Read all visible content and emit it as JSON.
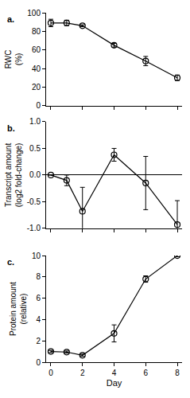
{
  "chart_data": [
    {
      "type": "line",
      "title": "a.",
      "y_label": "RWC\n(%)",
      "x": [
        0,
        1,
        2,
        4,
        6,
        8
      ],
      "values": [
        89,
        89,
        86,
        65,
        48,
        30
      ],
      "error": [
        4,
        3,
        1,
        2,
        5,
        3
      ],
      "color": "#000000",
      "marker": "circle-open",
      "xlim": [
        -0.3,
        8.3
      ],
      "xticks": [
        0,
        2,
        4,
        6,
        8
      ],
      "ylim": [
        0,
        100
      ],
      "yticks": [
        0,
        20,
        40,
        60,
        80,
        100
      ],
      "grid": false,
      "tick_labels": "y"
    },
    {
      "type": "line",
      "title": "b.",
      "y_label": "Transcript amount\n(log2 fold-change)",
      "x": [
        0,
        1,
        2,
        4,
        6,
        8
      ],
      "values": [
        0,
        -0.1,
        -0.68,
        0.38,
        -0.15,
        -0.93
      ],
      "error": [
        0,
        0.1,
        0.45,
        0.12,
        0.5,
        0.45
      ],
      "color": "#000000",
      "marker": "circle-open",
      "xlim": [
        -0.3,
        8.3
      ],
      "xticks": [
        0,
        2,
        4,
        6,
        8
      ],
      "ylim": [
        -1,
        1
      ],
      "yticks": [
        {
          "value": -1,
          "label": "-1.0"
        },
        -0.5,
        {
          "value": 0,
          "label": "0.0"
        },
        0.5,
        {
          "value": 1,
          "label": "1.0"
        }
      ],
      "grid": false,
      "tick_labels": "y"
    },
    {
      "type": "line",
      "title": "c.",
      "y_label": "Protein amount\n(relative)",
      "x_label": "Day",
      "x": [
        0,
        1,
        2,
        4,
        6,
        8
      ],
      "values": [
        1,
        0.95,
        0.65,
        2.7,
        7.8,
        10
      ],
      "error": [
        0.1,
        0.1,
        0.1,
        0.8,
        0.3,
        0.1
      ],
      "color": "#000000",
      "marker": "circle-open",
      "xlim": [
        -0.3,
        8.3
      ],
      "xticks": [
        0,
        2,
        4,
        6,
        8
      ],
      "ylim": [
        0,
        10
      ],
      "yticks": [
        0,
        2,
        4,
        6,
        8,
        10
      ],
      "grid": false,
      "tick_labels": true
    }
  ]
}
